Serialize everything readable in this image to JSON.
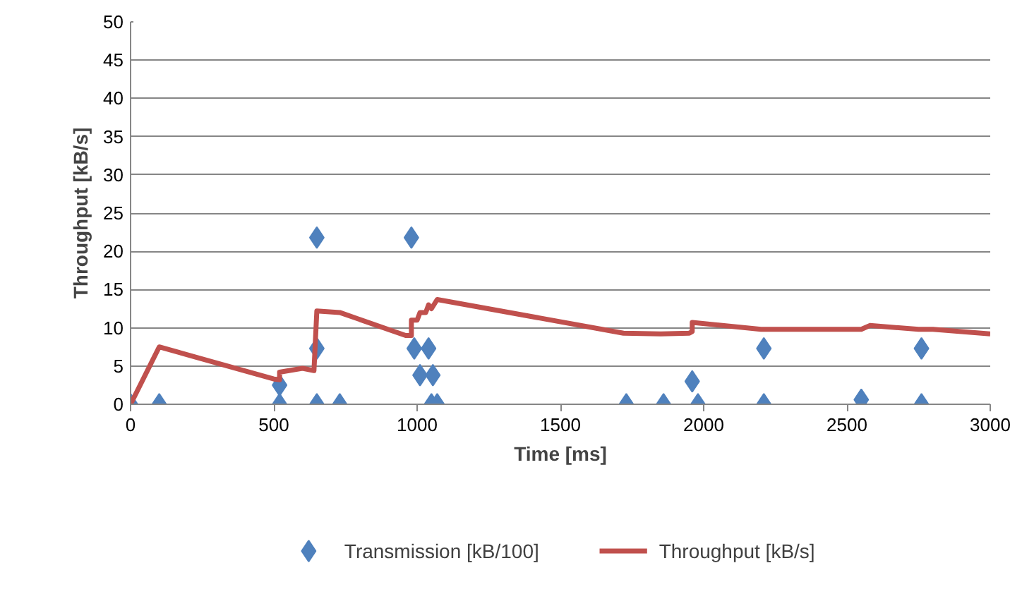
{
  "chart_data": {
    "type": "scatter",
    "xlabel": "Time [ms]",
    "ylabel": "Throughput [kB/s]",
    "xlim": [
      0,
      3000
    ],
    "xticks": [
      0,
      500,
      1000,
      1500,
      2000,
      2500,
      3000
    ],
    "ylim": [
      0,
      50
    ],
    "yticks": [
      0,
      5,
      10,
      15,
      20,
      25,
      30,
      35,
      40,
      45,
      50
    ],
    "grid": "y",
    "legend": "bottom",
    "series": [
      {
        "name": "Transmission [kB/100]",
        "marker": "diamond",
        "color": "#4f81bd",
        "x": [
          0,
          100,
          520,
          520,
          650,
          650,
          650,
          730,
          980,
          990,
          1040,
          1010,
          1055,
          1050,
          1070,
          1730,
          1860,
          1960,
          1980,
          2210,
          2210,
          2550,
          2760,
          2760
        ],
        "values": [
          0,
          0,
          0,
          2.5,
          0,
          7.3,
          21.8,
          0,
          21.8,
          7.3,
          7.3,
          3.8,
          3.8,
          0,
          0,
          0,
          0,
          3,
          0,
          7.3,
          0,
          0.6,
          7.3,
          0
        ]
      },
      {
        "name": "Throughput [kB/s]",
        "type": "line",
        "marker": "none",
        "line_style": "solid",
        "color": "#c0504d",
        "x": [
          0,
          100,
          500,
          520,
          520,
          600,
          640,
          650,
          730,
          960,
          980,
          980,
          1000,
          1010,
          1030,
          1040,
          1050,
          1070,
          1720,
          1850,
          1950,
          1960,
          1960,
          2200,
          2550,
          2580,
          2750,
          2800,
          3000
        ],
        "values": [
          0,
          7.5,
          3.3,
          3.2,
          4.2,
          4.7,
          4.4,
          12.2,
          12,
          9,
          9,
          11,
          11,
          12,
          12,
          13,
          12.5,
          13.7,
          9.3,
          9.2,
          9.3,
          9.5,
          10.7,
          9.8,
          9.8,
          10.3,
          9.8,
          9.8,
          9.2
        ]
      }
    ]
  }
}
